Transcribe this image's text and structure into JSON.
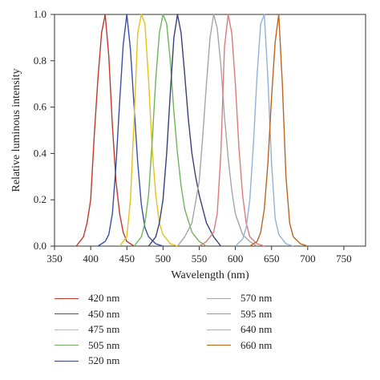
{
  "chart_data": {
    "type": "line",
    "title": "",
    "xlabel": "Wavelength (nm)",
    "ylabel": "Relative luminous intensity",
    "xlim": [
      350,
      780
    ],
    "ylim": [
      0,
      1.0
    ],
    "xticks": [
      "350",
      "400",
      "450",
      "500",
      "550",
      "600",
      "650",
      "700",
      "750"
    ],
    "yticks": [
      "0.0",
      "0.2",
      "0.4",
      "0.6",
      "0.8",
      "1.0"
    ],
    "grid": false,
    "legend_position": "below",
    "series": [
      {
        "name": "420 nm",
        "color": "#c0392b",
        "peak": 420,
        "width": 12,
        "x": [
          380,
          390,
          395,
          400,
          405,
          410,
          415,
          420,
          425,
          430,
          435,
          440,
          445,
          450,
          460
        ],
        "y": [
          0.0,
          0.04,
          0.1,
          0.2,
          0.48,
          0.72,
          0.92,
          1.0,
          0.82,
          0.52,
          0.28,
          0.14,
          0.06,
          0.02,
          0.0
        ]
      },
      {
        "name": "450 nm",
        "color": "#3b4fa8",
        "peak": 450,
        "width": 14,
        "x": [
          410,
          420,
          425,
          430,
          435,
          440,
          445,
          450,
          455,
          460,
          465,
          470,
          475,
          480,
          490,
          500
        ],
        "y": [
          0.0,
          0.02,
          0.05,
          0.14,
          0.35,
          0.62,
          0.87,
          1.0,
          0.85,
          0.6,
          0.36,
          0.18,
          0.08,
          0.04,
          0.01,
          0.0
        ]
      },
      {
        "name": "475 nm",
        "color": "#e8c21a",
        "peak": 470,
        "width": 14,
        "x": [
          440,
          450,
          455,
          460,
          465,
          470,
          475,
          480,
          485,
          490,
          495,
          500,
          510,
          520
        ],
        "y": [
          0.0,
          0.04,
          0.2,
          0.55,
          0.92,
          1.0,
          0.96,
          0.72,
          0.42,
          0.22,
          0.1,
          0.05,
          0.01,
          0.0
        ]
      },
      {
        "name": "505 nm",
        "color": "#6db65b",
        "peak": 500,
        "width": 18,
        "x": [
          460,
          470,
          475,
          480,
          485,
          490,
          495,
          500,
          505,
          510,
          515,
          520,
          525,
          530,
          540,
          550,
          560
        ],
        "y": [
          0.0,
          0.04,
          0.1,
          0.22,
          0.45,
          0.72,
          0.92,
          1.0,
          0.96,
          0.8,
          0.58,
          0.4,
          0.26,
          0.16,
          0.06,
          0.02,
          0.0
        ]
      },
      {
        "name": "520 nm",
        "color": "#39407a",
        "peak": 520,
        "width": 20,
        "x": [
          480,
          490,
          495,
          500,
          505,
          510,
          515,
          520,
          525,
          530,
          535,
          540,
          545,
          550,
          560,
          570,
          580
        ],
        "y": [
          0.0,
          0.04,
          0.1,
          0.2,
          0.4,
          0.66,
          0.9,
          1.0,
          0.92,
          0.74,
          0.55,
          0.4,
          0.3,
          0.22,
          0.1,
          0.04,
          0.0
        ]
      },
      {
        "name": "570 nm",
        "color": "#a6a6a6",
        "peak": 570,
        "width": 18,
        "x": [
          520,
          530,
          540,
          550,
          555,
          560,
          565,
          570,
          575,
          580,
          585,
          590,
          595,
          600,
          610,
          620,
          630
        ],
        "y": [
          0.0,
          0.04,
          0.1,
          0.28,
          0.48,
          0.7,
          0.9,
          1.0,
          0.94,
          0.78,
          0.56,
          0.38,
          0.24,
          0.14,
          0.05,
          0.02,
          0.0
        ]
      },
      {
        "name": "595 nm",
        "color": "#e07a78",
        "peak": 590,
        "width": 14,
        "x": [
          550,
          560,
          570,
          575,
          580,
          585,
          590,
          595,
          600,
          605,
          610,
          615,
          620,
          630,
          640
        ],
        "y": [
          0.0,
          0.02,
          0.06,
          0.14,
          0.4,
          0.86,
          1.0,
          0.92,
          0.7,
          0.42,
          0.22,
          0.1,
          0.04,
          0.01,
          0.0
        ]
      },
      {
        "name": "640 nm",
        "color": "#8fb3d9",
        "peak": 640,
        "width": 14,
        "x": [
          600,
          610,
          615,
          620,
          625,
          630,
          635,
          640,
          645,
          650,
          655,
          660,
          670,
          680
        ],
        "y": [
          0.0,
          0.03,
          0.08,
          0.2,
          0.44,
          0.74,
          0.96,
          1.0,
          0.72,
          0.36,
          0.12,
          0.05,
          0.01,
          0.0
        ]
      },
      {
        "name": "660 nm",
        "color": "#c0641e",
        "peak": 660,
        "width": 14,
        "x": [
          620,
          630,
          635,
          640,
          645,
          650,
          655,
          660,
          665,
          670,
          675,
          680,
          690,
          700
        ],
        "y": [
          0.0,
          0.02,
          0.06,
          0.16,
          0.36,
          0.64,
          0.88,
          1.0,
          0.7,
          0.3,
          0.1,
          0.04,
          0.01,
          0.0
        ]
      }
    ]
  }
}
